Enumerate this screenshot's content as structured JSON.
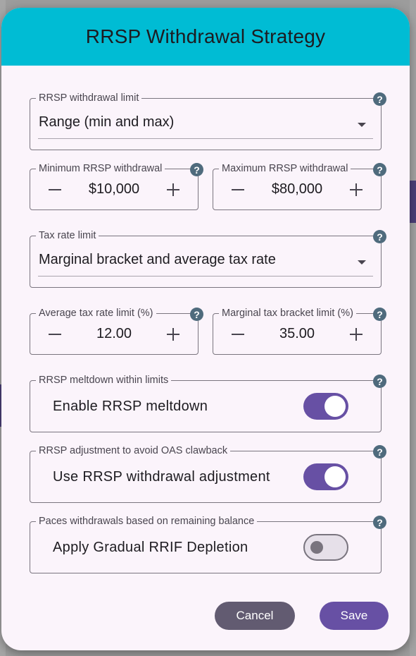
{
  "dialog": {
    "title": "RRSP Withdrawal Strategy",
    "header_color": "#00bcd4",
    "accent_color": "#6750a4"
  },
  "fields": {
    "withdrawal_limit": {
      "legend": "RRSP withdrawal limit",
      "value": "Range (min and max)"
    },
    "min_withdrawal": {
      "legend": "Minimum RRSP withdrawal",
      "value": "$10,000"
    },
    "max_withdrawal": {
      "legend": "Maximum RRSP withdrawal",
      "value": "$80,000"
    },
    "tax_rate_limit": {
      "legend": "Tax rate limit",
      "value": "Marginal bracket and average tax rate"
    },
    "avg_tax_rate": {
      "legend": "Average tax rate limit (%)",
      "value": "12.00"
    },
    "marginal_bracket": {
      "legend": "Marginal tax bracket limit (%)",
      "value": "35.00"
    }
  },
  "toggles": {
    "meltdown": {
      "legend": "RRSP meltdown within limits",
      "label": "Enable RRSP meltdown",
      "on": true
    },
    "oas": {
      "legend": "RRSP adjustment to avoid OAS clawback",
      "label": "Use RRSP withdrawal adjustment",
      "on": true
    },
    "rrif": {
      "legend": "Paces withdrawals based on remaining balance",
      "label": "Apply Gradual RRIF Depletion",
      "on": false
    }
  },
  "help_glyph": "?",
  "buttons": {
    "cancel": "Cancel",
    "save": "Save"
  }
}
